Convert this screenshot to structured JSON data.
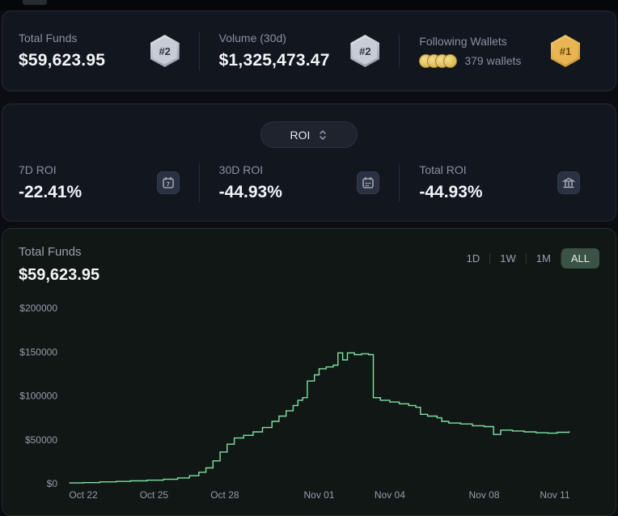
{
  "colors": {
    "accent_green": "#7ee0a7",
    "badge_silver": "#c7ccd6",
    "badge_gold": "#e9b553",
    "range_active_bg": "#3a5346"
  },
  "stats_bar": {
    "items": [
      {
        "label": "Total Funds",
        "value": "$59,623.95",
        "badge": "#2",
        "badge_variant": "silver"
      },
      {
        "label": "Volume (30d)",
        "value": "$1,325,473.47",
        "badge": "#2",
        "badge_variant": "silver"
      },
      {
        "label": "Following Wallets",
        "value": "379 wallets",
        "badge": "#1",
        "badge_variant": "gold",
        "coin_count": 4
      }
    ]
  },
  "roi_card": {
    "selector_label": "ROI",
    "items": [
      {
        "label": "7D ROI",
        "value": "-22.41%",
        "icon": "calendar-7-icon"
      },
      {
        "label": "30D ROI",
        "value": "-44.93%",
        "icon": "calendar-30-icon"
      },
      {
        "label": "Total ROI",
        "value": "-44.93%",
        "icon": "bank-icon"
      }
    ]
  },
  "chart_card": {
    "title": "Total Funds",
    "value": "$59,623.95",
    "ranges": [
      "1D",
      "1W",
      "1M",
      "ALL"
    ],
    "active_range": "ALL"
  },
  "chart_data": {
    "type": "line",
    "title": "Total Funds over time",
    "line_color": "#7ee0a7",
    "legend": false,
    "grid": false,
    "x_tick_labels": [
      "Oct 22",
      "Oct 25",
      "Oct 28",
      "Nov 01",
      "Nov 04",
      "Nov 08",
      "Nov 11"
    ],
    "x_tick_days": [
      0,
      3,
      6,
      10,
      13,
      17,
      20
    ],
    "y_ticks": [
      0,
      50000,
      100000,
      150000,
      200000
    ],
    "y_tick_labels": [
      "$0",
      "$50000",
      "$100000",
      "$150000",
      "$200000"
    ],
    "ylim": [
      0,
      200000
    ],
    "xlim": [
      -0.65,
      21.5
    ],
    "points": [
      [
        -0.6,
        800
      ],
      [
        0,
        1200
      ],
      [
        0.7,
        2000
      ],
      [
        1.4,
        2600
      ],
      [
        2,
        3200
      ],
      [
        2.7,
        4000
      ],
      [
        3.4,
        5000
      ],
      [
        4,
        6500
      ],
      [
        4.5,
        9000
      ],
      [
        4.9,
        13000
      ],
      [
        5.2,
        18000
      ],
      [
        5.5,
        26000
      ],
      [
        5.8,
        36000
      ],
      [
        6.1,
        45000
      ],
      [
        6.4,
        52000
      ],
      [
        6.8,
        55000
      ],
      [
        7.2,
        59000
      ],
      [
        7.6,
        64000
      ],
      [
        8,
        71000
      ],
      [
        8.3,
        77000
      ],
      [
        8.6,
        83000
      ],
      [
        8.9,
        89000
      ],
      [
        9.1,
        95000
      ],
      [
        9.3,
        98000
      ],
      [
        9.5,
        117000
      ],
      [
        9.8,
        124000
      ],
      [
        10,
        131000
      ],
      [
        10.3,
        133000
      ],
      [
        10.6,
        135000
      ],
      [
        10.8,
        149000
      ],
      [
        11,
        141000
      ],
      [
        11.2,
        149000
      ],
      [
        11.5,
        147000
      ],
      [
        11.8,
        148000
      ],
      [
        12.1,
        147000
      ],
      [
        12.3,
        98000
      ],
      [
        12.6,
        95000
      ],
      [
        13,
        93000
      ],
      [
        13.4,
        91000
      ],
      [
        13.8,
        89000
      ],
      [
        14.1,
        87000
      ],
      [
        14.3,
        79000
      ],
      [
        14.6,
        77000
      ],
      [
        15,
        75000
      ],
      [
        15.2,
        71000
      ],
      [
        15.5,
        69000
      ],
      [
        16,
        68000
      ],
      [
        16.5,
        66000
      ],
      [
        17,
        65000
      ],
      [
        17.4,
        56000
      ],
      [
        17.7,
        61000
      ],
      [
        18.2,
        60000
      ],
      [
        18.7,
        59000
      ],
      [
        19.2,
        58000
      ],
      [
        19.7,
        57500
      ],
      [
        20.1,
        58500
      ],
      [
        20.6,
        59623.95
      ]
    ]
  }
}
